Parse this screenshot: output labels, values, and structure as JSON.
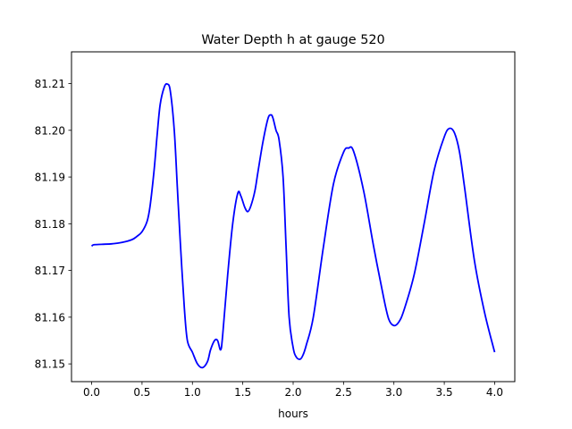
{
  "chart_data": {
    "type": "line",
    "title": "Water Depth h at gauge 520",
    "xlabel": "hours",
    "ylabel": "",
    "xlim": [
      -0.2,
      4.2
    ],
    "ylim": [
      81.1462,
      81.2168
    ],
    "grid": false,
    "legend": "none",
    "x_ticks": [
      0.0,
      0.5,
      1.0,
      1.5,
      2.0,
      2.5,
      3.0,
      3.5,
      4.0
    ],
    "x_tick_labels": [
      "0.0",
      "0.5",
      "1.0",
      "1.5",
      "2.0",
      "2.5",
      "3.0",
      "3.5",
      "4.0"
    ],
    "y_ticks": [
      81.15,
      81.16,
      81.17,
      81.18,
      81.19,
      81.2,
      81.21
    ],
    "y_tick_labels": [
      "81.15",
      "81.16",
      "81.17",
      "81.18",
      "81.19",
      "81.20",
      "81.21"
    ],
    "series": [
      {
        "color": "#0000ff",
        "x": [
          0.0,
          0.02,
          0.1,
          0.2,
          0.3,
          0.4,
          0.45,
          0.5,
          0.55,
          0.58,
          0.62,
          0.65,
          0.68,
          0.72,
          0.75,
          0.78,
          0.82,
          0.85,
          0.88,
          0.92,
          0.95,
          1.0,
          1.05,
          1.1,
          1.15,
          1.18,
          1.22,
          1.25,
          1.28,
          1.3,
          1.35,
          1.4,
          1.45,
          1.48,
          1.52,
          1.55,
          1.58,
          1.62,
          1.65,
          1.7,
          1.75,
          1.78,
          1.8,
          1.83,
          1.86,
          1.9,
          1.93,
          1.96,
          2.0,
          2.03,
          2.07,
          2.1,
          2.13,
          2.2,
          2.3,
          2.4,
          2.5,
          2.55,
          2.6,
          2.7,
          2.8,
          2.9,
          2.95,
          3.0,
          3.05,
          3.1,
          3.2,
          3.3,
          3.4,
          3.5,
          3.55,
          3.6,
          3.65,
          3.7,
          3.8,
          3.9,
          4.0
        ],
        "y": [
          81.1752,
          81.1755,
          81.1756,
          81.1757,
          81.176,
          81.1766,
          81.1773,
          81.1783,
          81.1805,
          81.1838,
          81.1915,
          81.199,
          81.2055,
          81.2092,
          81.2099,
          81.2085,
          81.2,
          81.188,
          81.176,
          81.162,
          81.155,
          81.1525,
          81.15,
          81.1492,
          81.1505,
          81.153,
          81.155,
          81.155,
          81.153,
          81.156,
          81.169,
          81.18,
          81.1865,
          81.186,
          81.1835,
          81.1826,
          81.1838,
          81.187,
          81.191,
          81.1975,
          81.2025,
          81.2033,
          81.2026,
          81.2,
          81.198,
          81.19,
          81.175,
          81.16,
          81.1535,
          81.1515,
          81.151,
          81.152,
          81.154,
          81.16,
          81.175,
          81.1885,
          81.1953,
          81.1962,
          81.1955,
          81.187,
          81.175,
          81.164,
          81.1595,
          81.1582,
          81.159,
          81.1615,
          81.169,
          81.18,
          81.1915,
          81.1986,
          81.2004,
          81.1995,
          81.1955,
          81.188,
          81.172,
          81.161,
          81.1525
        ]
      }
    ]
  }
}
